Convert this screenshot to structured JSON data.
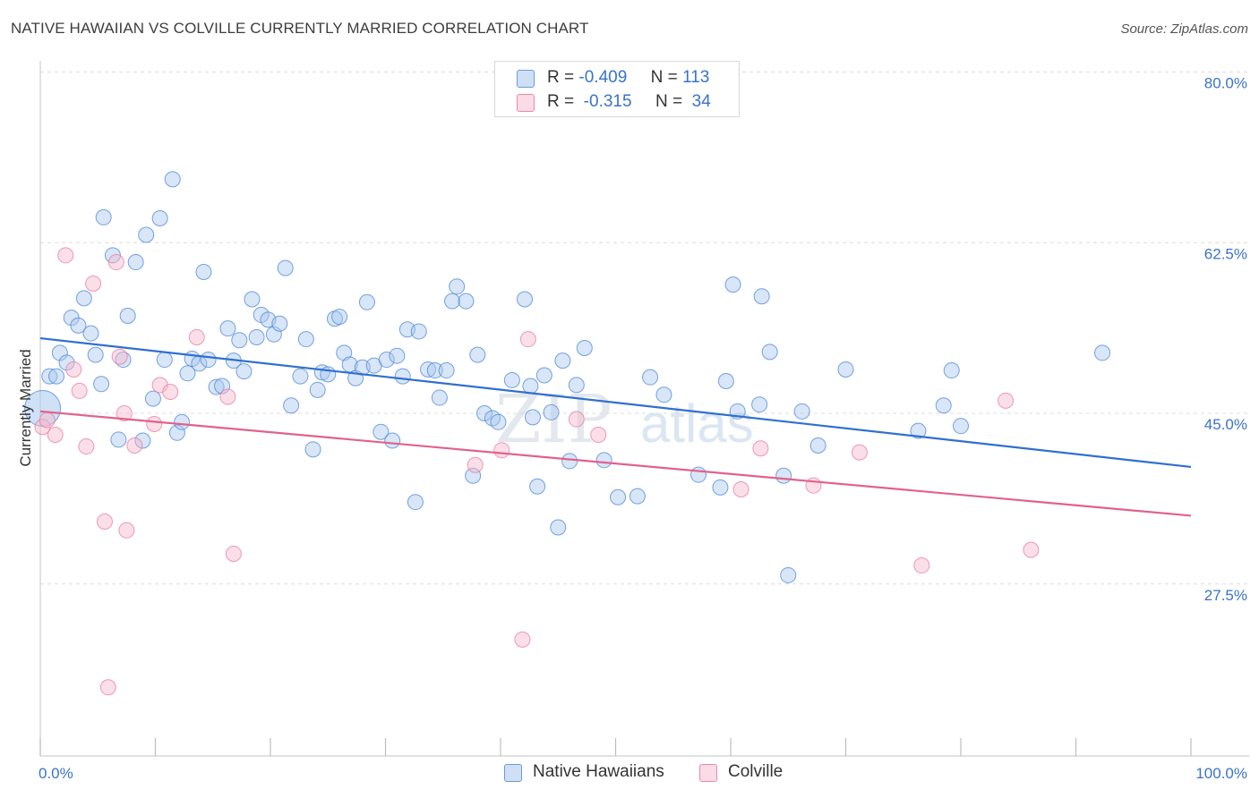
{
  "header": {
    "title": "NATIVE HAWAIIAN VS COLVILLE CURRENTLY MARRIED CORRELATION CHART",
    "source": "Source: ZipAtlas.com"
  },
  "legend": {
    "rows": [
      {
        "r_label": "R =",
        "r_value": "-0.409",
        "n_label": "N =",
        "n_value": "113",
        "color": "#a8c8ee"
      },
      {
        "r_label": "R =",
        "r_value": "-0.315",
        "n_label": "N =",
        "n_value": "34",
        "color": "#f6b8cb"
      }
    ]
  },
  "bottom_legend": {
    "items": [
      {
        "label": "Native Hawaiians",
        "color": "#a8c8ee"
      },
      {
        "label": "Colville",
        "color": "#f6b8cb"
      }
    ]
  },
  "watermark": {
    "zip": "ZIP",
    "atlas": "atlas"
  },
  "chart_data": {
    "type": "scatter",
    "title": "NATIVE HAWAIIAN VS COLVILLE CURRENTLY MARRIED CORRELATION CHART",
    "xlabel": "",
    "ylabel": "Currently Married",
    "xlim": [
      0,
      100
    ],
    "ylim": [
      10,
      83
    ],
    "x_tick_labels": [
      "0.0%",
      "100.0%"
    ],
    "y_ticks": [
      27.5,
      45.0,
      62.5,
      80.0
    ],
    "y_tick_labels": [
      "27.5%",
      "45.0%",
      "62.5%",
      "80.0%"
    ],
    "grid": "horizontal dashed",
    "legend_position": "top-center",
    "series": [
      {
        "name": "Native Hawaiians",
        "color": "#4a86d6",
        "fill": "#a8c8ee",
        "trend": {
          "x": [
            0,
            100
          ],
          "y": [
            52.7,
            39.5
          ],
          "color": "#2f6fd0"
        },
        "points": [
          [
            0.2,
            45.5
          ],
          [
            0.8,
            48.8
          ],
          [
            1.4,
            48.8
          ],
          [
            1.7,
            51.2
          ],
          [
            2.3,
            50.2
          ],
          [
            2.7,
            54.8
          ],
          [
            3.3,
            54.0
          ],
          [
            3.8,
            56.8
          ],
          [
            4.4,
            53.2
          ],
          [
            4.8,
            51.0
          ],
          [
            5.3,
            48.0
          ],
          [
            5.5,
            65.1
          ],
          [
            6.3,
            61.2
          ],
          [
            6.8,
            42.3
          ],
          [
            7.2,
            50.5
          ],
          [
            7.6,
            55.0
          ],
          [
            8.3,
            60.5
          ],
          [
            8.9,
            42.2
          ],
          [
            9.2,
            63.3
          ],
          [
            9.8,
            46.5
          ],
          [
            10.4,
            65.0
          ],
          [
            10.8,
            50.5
          ],
          [
            11.5,
            69.0
          ],
          [
            11.9,
            43.0
          ],
          [
            12.3,
            44.1
          ],
          [
            12.8,
            49.1
          ],
          [
            13.2,
            50.6
          ],
          [
            13.8,
            50.1
          ],
          [
            14.2,
            59.5
          ],
          [
            14.6,
            50.5
          ],
          [
            15.3,
            47.7
          ],
          [
            15.8,
            47.8
          ],
          [
            16.3,
            53.7
          ],
          [
            16.8,
            50.4
          ],
          [
            17.3,
            52.5
          ],
          [
            17.7,
            49.3
          ],
          [
            18.4,
            56.7
          ],
          [
            18.8,
            52.8
          ],
          [
            19.2,
            55.1
          ],
          [
            19.8,
            54.6
          ],
          [
            20.3,
            53.1
          ],
          [
            20.8,
            54.2
          ],
          [
            21.3,
            59.9
          ],
          [
            21.8,
            45.8
          ],
          [
            22.6,
            48.8
          ],
          [
            23.1,
            52.6
          ],
          [
            23.7,
            41.3
          ],
          [
            24.1,
            47.4
          ],
          [
            24.5,
            49.2
          ],
          [
            25.0,
            49.0
          ],
          [
            25.6,
            54.7
          ],
          [
            26.0,
            54.9
          ],
          [
            26.4,
            51.2
          ],
          [
            26.9,
            50.0
          ],
          [
            27.4,
            48.6
          ],
          [
            28.0,
            49.7
          ],
          [
            28.4,
            56.4
          ],
          [
            29.0,
            49.9
          ],
          [
            29.6,
            43.1
          ],
          [
            30.1,
            50.5
          ],
          [
            30.6,
            42.2
          ],
          [
            31.0,
            50.9
          ],
          [
            31.5,
            48.8
          ],
          [
            31.9,
            53.6
          ],
          [
            32.6,
            35.9
          ],
          [
            32.9,
            53.4
          ],
          [
            33.7,
            49.5
          ],
          [
            34.3,
            49.4
          ],
          [
            34.7,
            46.6
          ],
          [
            35.3,
            49.4
          ],
          [
            35.8,
            56.5
          ],
          [
            36.2,
            58.0
          ],
          [
            37.0,
            56.5
          ],
          [
            37.6,
            38.6
          ],
          [
            38.0,
            51.0
          ],
          [
            38.6,
            45.0
          ],
          [
            39.3,
            44.5
          ],
          [
            39.8,
            44.1
          ],
          [
            41.0,
            48.4
          ],
          [
            42.1,
            56.7
          ],
          [
            42.6,
            47.8
          ],
          [
            42.8,
            44.6
          ],
          [
            43.2,
            37.5
          ],
          [
            43.8,
            48.9
          ],
          [
            44.4,
            45.1
          ],
          [
            45.0,
            33.3
          ],
          [
            45.4,
            50.4
          ],
          [
            46.0,
            40.1
          ],
          [
            46.6,
            47.9
          ],
          [
            47.3,
            51.7
          ],
          [
            49.0,
            40.2
          ],
          [
            50.2,
            36.4
          ],
          [
            51.9,
            36.5
          ],
          [
            53.0,
            48.7
          ],
          [
            54.2,
            46.9
          ],
          [
            57.2,
            38.7
          ],
          [
            59.1,
            37.4
          ],
          [
            59.6,
            48.3
          ],
          [
            60.2,
            58.2
          ],
          [
            60.6,
            45.2
          ],
          [
            62.5,
            45.9
          ],
          [
            62.7,
            57.0
          ],
          [
            63.4,
            51.3
          ],
          [
            64.6,
            38.6
          ],
          [
            65.0,
            28.4
          ],
          [
            66.2,
            45.2
          ],
          [
            67.6,
            41.7
          ],
          [
            70.0,
            49.5
          ],
          [
            76.3,
            43.2
          ],
          [
            78.5,
            45.8
          ],
          [
            79.2,
            49.4
          ],
          [
            80.0,
            43.7
          ],
          [
            92.3,
            51.2
          ]
        ]
      },
      {
        "name": "Colville",
        "color": "#e8799d",
        "fill": "#f6b8cb",
        "trend": {
          "x": [
            0,
            100
          ],
          "y": [
            45.2,
            34.5
          ],
          "color": "#e0628c"
        },
        "points": [
          [
            0.2,
            43.6
          ],
          [
            0.6,
            44.3
          ],
          [
            1.3,
            42.8
          ],
          [
            2.2,
            61.2
          ],
          [
            2.9,
            49.5
          ],
          [
            3.4,
            47.3
          ],
          [
            4.0,
            41.6
          ],
          [
            4.6,
            58.3
          ],
          [
            5.6,
            33.9
          ],
          [
            5.9,
            16.9
          ],
          [
            6.6,
            60.5
          ],
          [
            6.9,
            50.8
          ],
          [
            7.3,
            45.0
          ],
          [
            7.5,
            33.0
          ],
          [
            8.2,
            41.7
          ],
          [
            9.9,
            43.9
          ],
          [
            10.4,
            47.9
          ],
          [
            11.3,
            47.2
          ],
          [
            13.6,
            52.8
          ],
          [
            16.3,
            46.7
          ],
          [
            16.8,
            30.6
          ],
          [
            37.8,
            39.7
          ],
          [
            40.1,
            41.2
          ],
          [
            41.9,
            21.8
          ],
          [
            42.4,
            52.6
          ],
          [
            46.6,
            44.4
          ],
          [
            48.5,
            42.8
          ],
          [
            60.9,
            37.2
          ],
          [
            62.6,
            41.4
          ],
          [
            67.2,
            37.6
          ],
          [
            71.2,
            41.0
          ],
          [
            76.6,
            29.4
          ],
          [
            83.9,
            46.3
          ],
          [
            86.1,
            31.0
          ]
        ]
      }
    ]
  }
}
